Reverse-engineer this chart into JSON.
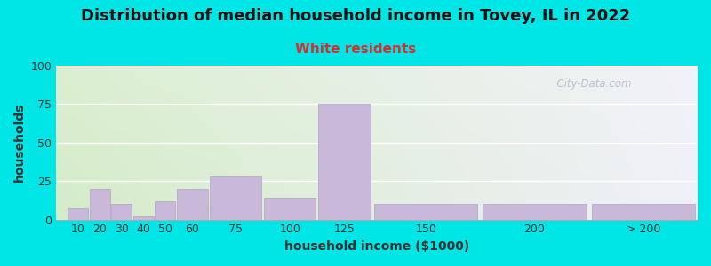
{
  "title": "Distribution of median household income in Tovey, IL in 2022",
  "subtitle": "White residents",
  "xlabel": "household income ($1000)",
  "ylabel": "households",
  "bar_color": "#c9b8d8",
  "bar_edge_color": "#b0a0c8",
  "background_outer": "#00e5e5",
  "ylim": [
    0,
    100
  ],
  "yticks": [
    0,
    25,
    50,
    75,
    100
  ],
  "bar_lefts": [
    10,
    20,
    30,
    40,
    50,
    60,
    75,
    100,
    125,
    150,
    200,
    250
  ],
  "bar_widths": [
    10,
    10,
    10,
    10,
    10,
    15,
    25,
    25,
    25,
    50,
    50,
    50
  ],
  "bar_heights": [
    7,
    20,
    10,
    2,
    12,
    20,
    28,
    14,
    75,
    10,
    10,
    10
  ],
  "xtick_labels": [
    "10",
    "20",
    "30",
    "40",
    "50",
    "60",
    "75",
    "100",
    "125",
    "150",
    "200",
    "> 200"
  ],
  "watermark": "  City-Data.com",
  "title_fontsize": 13,
  "subtitle_fontsize": 11,
  "subtitle_color": "#cc3333",
  "axis_label_fontsize": 10,
  "tick_fontsize": 9,
  "xlim": [
    5,
    300
  ]
}
